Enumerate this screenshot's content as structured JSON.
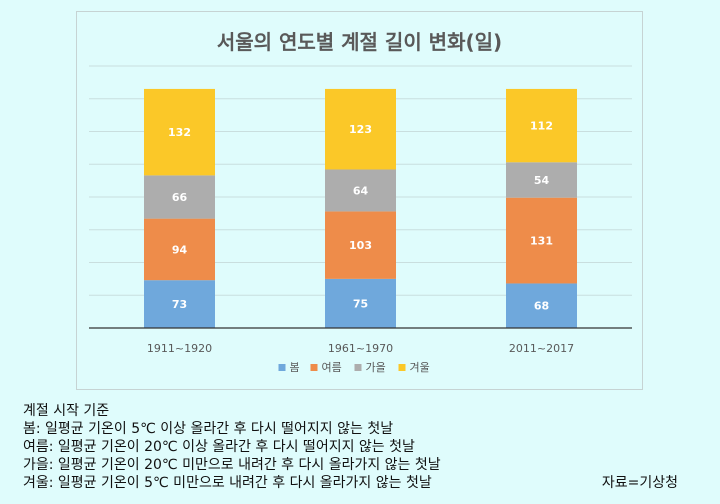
{
  "chart_data": {
    "type": "bar",
    "stacked": true,
    "title": "서울의 연도별 계절 길이 변화(일)",
    "categories": [
      "1911~1920",
      "1961~1970",
      "2011~2017"
    ],
    "series": [
      {
        "name": "봄",
        "values": [
          73,
          75,
          68
        ],
        "color": "#6fa8dc"
      },
      {
        "name": "여름",
        "values": [
          94,
          103,
          131
        ],
        "color": "#ee8c4a"
      },
      {
        "name": "가을",
        "values": [
          66,
          64,
          54
        ],
        "color": "#adadad"
      },
      {
        "name": "겨울",
        "values": [
          132,
          123,
          112
        ],
        "color": "#fbc828"
      }
    ],
    "ylim": [
      0,
      400
    ],
    "grid": true,
    "legend": "bottom",
    "data_labels": true
  },
  "notes": {
    "heading": "계절 시작 기준",
    "lines": [
      "봄: 일평균 기온이 5℃ 이상 올라간 후 다시 떨어지지 않는 첫날",
      "여름: 일평균 기온이 20℃ 이상 올라간 후 다시 떨어지지 않는 첫날",
      "가을: 일평균 기온이 20℃ 미만으로 내려간 후 다시 올라가지 않는 첫날",
      "겨울: 일평균 기온이 5℃ 미만으로 내려간 후 다시 올라가지 않는 첫날"
    ]
  },
  "source": "자료=기상청"
}
